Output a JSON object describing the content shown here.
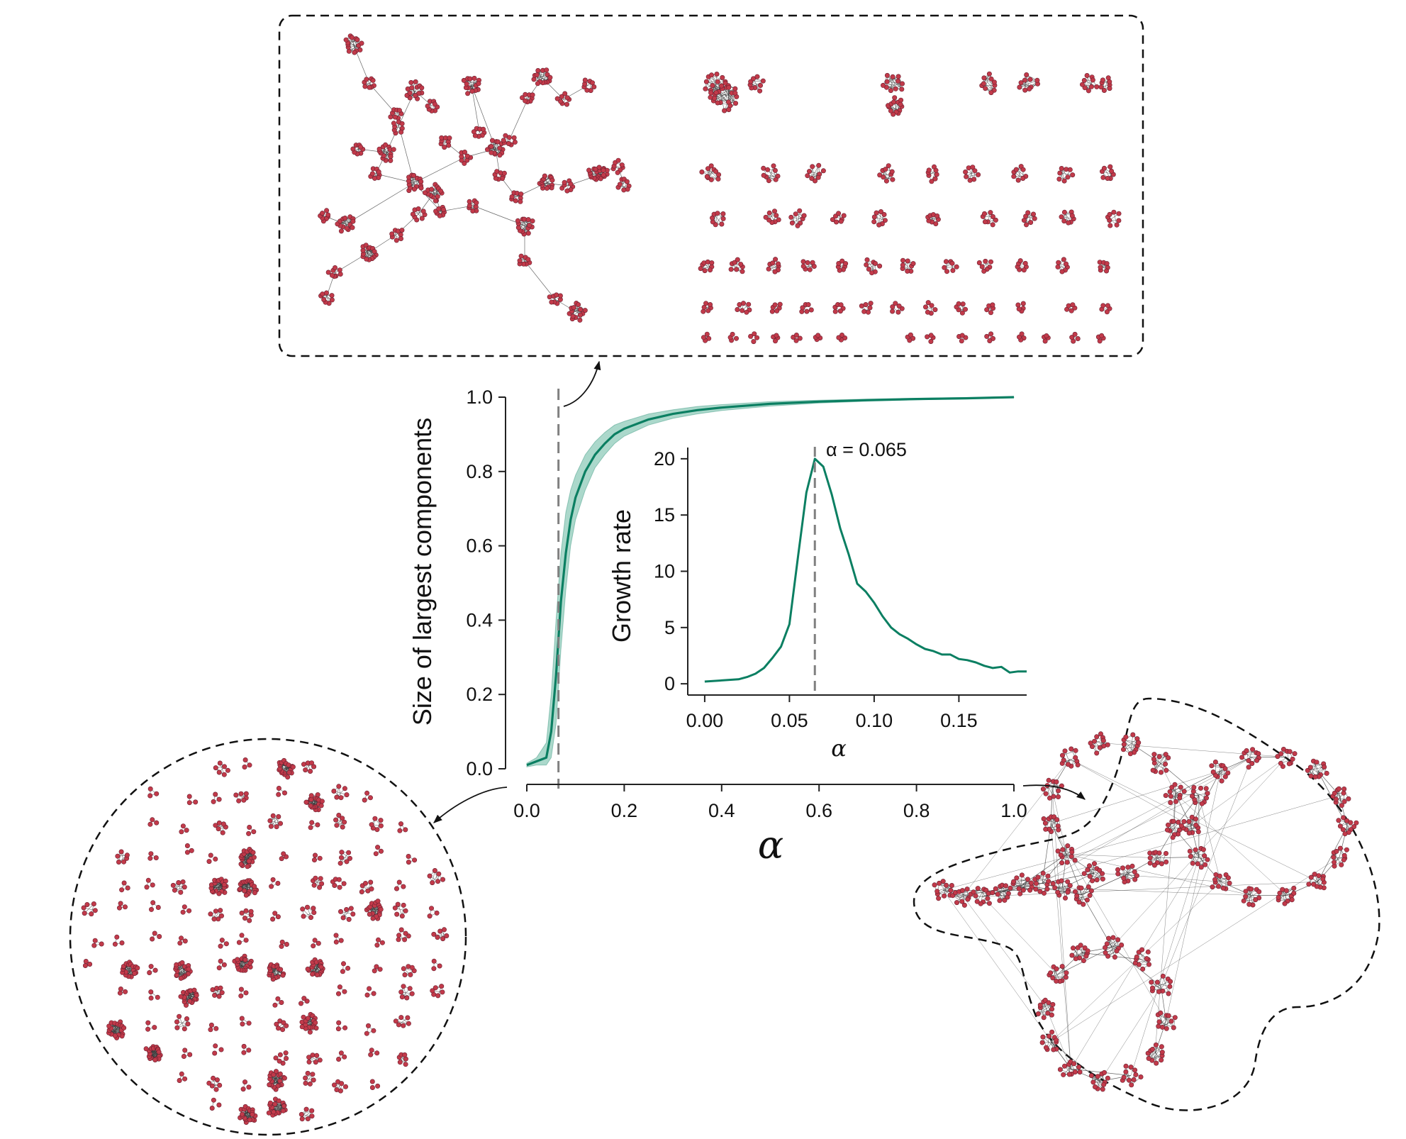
{
  "colors": {
    "curve": "#0b7f62",
    "band": "#8fcbb9",
    "node": "#c23a4a",
    "node_edge": "#6a2030",
    "edge": "#333333",
    "dashed_line": "#808080",
    "axis": "#222222"
  },
  "chart_data": [
    {
      "type": "line",
      "role": "main",
      "ylabel": "Size of largest components",
      "xlabel": "α",
      "xlim": [
        0,
        1
      ],
      "ylim": [
        0,
        1
      ],
      "xticks": [
        {
          "value": 0.0,
          "label": "0.0"
        },
        {
          "value": 0.2,
          "label": "0.2"
        },
        {
          "value": 0.4,
          "label": "0.4"
        },
        {
          "value": 0.6,
          "label": "0.6"
        },
        {
          "value": 0.8,
          "label": "0.8"
        },
        {
          "value": 1.0,
          "label": "1.0"
        }
      ],
      "yticks": [
        {
          "value": 0.0,
          "label": "0.0"
        },
        {
          "value": 0.2,
          "label": "0.2"
        },
        {
          "value": 0.4,
          "label": "0.4"
        },
        {
          "value": 0.6,
          "label": "0.6"
        },
        {
          "value": 0.8,
          "label": "0.8"
        },
        {
          "value": 1.0,
          "label": "1.0"
        }
      ],
      "vline_x": 0.065,
      "grid": false,
      "x": [
        0.0,
        0.02,
        0.04,
        0.05,
        0.06,
        0.07,
        0.08,
        0.09,
        0.1,
        0.12,
        0.14,
        0.16,
        0.18,
        0.2,
        0.25,
        0.3,
        0.35,
        0.4,
        0.5,
        0.6,
        0.7,
        0.8,
        0.9,
        1.0
      ],
      "y": [
        0.01,
        0.02,
        0.03,
        0.1,
        0.25,
        0.45,
        0.58,
        0.67,
        0.73,
        0.8,
        0.845,
        0.875,
        0.9,
        0.915,
        0.94,
        0.955,
        0.965,
        0.972,
        0.982,
        0.988,
        0.992,
        0.995,
        0.997,
        1.0
      ],
      "y_low": [
        0.005,
        0.01,
        0.01,
        0.03,
        0.12,
        0.32,
        0.48,
        0.6,
        0.67,
        0.75,
        0.81,
        0.845,
        0.875,
        0.895,
        0.925,
        0.943,
        0.955,
        0.964,
        0.976,
        0.984,
        0.989,
        0.993,
        0.996,
        0.999
      ],
      "y_high": [
        0.015,
        0.03,
        0.07,
        0.2,
        0.4,
        0.58,
        0.69,
        0.75,
        0.79,
        0.845,
        0.88,
        0.905,
        0.925,
        0.935,
        0.955,
        0.966,
        0.975,
        0.98,
        0.988,
        0.992,
        0.995,
        0.997,
        0.999,
        1.0
      ]
    },
    {
      "type": "line",
      "role": "inset",
      "ylabel": "Growth rate",
      "xlabel": "α",
      "xlim": [
        -0.01,
        0.19
      ],
      "ylim": [
        -1,
        21
      ],
      "xticks": [
        {
          "value": 0.0,
          "label": "0.00"
        },
        {
          "value": 0.05,
          "label": "0.05"
        },
        {
          "value": 0.1,
          "label": "0.10"
        },
        {
          "value": 0.15,
          "label": "0.15"
        }
      ],
      "yticks": [
        {
          "value": 0,
          "label": "0"
        },
        {
          "value": 5,
          "label": "5"
        },
        {
          "value": 10,
          "label": "10"
        },
        {
          "value": 15,
          "label": "15"
        },
        {
          "value": 20,
          "label": "20"
        }
      ],
      "vline_x": 0.065,
      "annotation": "α = 0.065",
      "grid": false,
      "x": [
        0.0,
        0.01,
        0.02,
        0.025,
        0.03,
        0.035,
        0.04,
        0.045,
        0.05,
        0.055,
        0.06,
        0.065,
        0.07,
        0.075,
        0.08,
        0.085,
        0.09,
        0.095,
        0.1,
        0.105,
        0.11,
        0.115,
        0.12,
        0.125,
        0.13,
        0.135,
        0.14,
        0.145,
        0.15,
        0.155,
        0.16,
        0.165,
        0.17,
        0.175,
        0.18,
        0.185,
        0.19
      ],
      "y": [
        0.2,
        0.3,
        0.4,
        0.6,
        0.9,
        1.4,
        2.3,
        3.3,
        5.3,
        11.2,
        17.0,
        20.0,
        19.3,
        16.8,
        13.8,
        11.5,
        8.9,
        8.2,
        7.2,
        6.0,
        5.0,
        4.4,
        4.0,
        3.5,
        3.1,
        2.9,
        2.6,
        2.6,
        2.2,
        2.1,
        1.9,
        1.6,
        1.4,
        1.5,
        1.0,
        1.1,
        1.1
      ]
    }
  ],
  "illustrations": {
    "top_panel": "network-components-near-critical",
    "left_panel": "network-components-subcritical",
    "right_panel": "network-giant-component-supercritical"
  }
}
